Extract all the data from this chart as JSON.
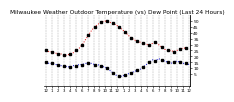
{
  "title": "Milwaukee Weather Outdoor Temperature (vs) Dew Point (Last 24 Hours)",
  "title_fontsize": 4.2,
  "background_color": "#ffffff",
  "grid_color": "#aaaaaa",
  "temp_color": "#dd0000",
  "dew_color": "#0000cc",
  "marker_color": "#000000",
  "ylim": [
    -5,
    55
  ],
  "yticks": [
    5,
    10,
    15,
    20,
    25,
    30,
    35,
    40,
    45,
    50
  ],
  "ytick_labels": [
    "5",
    "10",
    "15",
    "20",
    "25",
    "30",
    "35",
    "40",
    "45",
    "50"
  ],
  "ytick_fontsize": 3.2,
  "xtick_fontsize": 2.8,
  "num_points": 48,
  "temp_values": [
    25,
    24,
    24,
    23,
    22,
    22,
    21,
    21,
    22,
    23,
    25,
    27,
    30,
    34,
    38,
    42,
    45,
    47,
    49,
    50,
    50,
    49,
    48,
    47,
    45,
    43,
    41,
    38,
    36,
    34,
    33,
    32,
    31,
    30,
    30,
    31,
    32,
    30,
    28,
    26,
    25,
    25,
    24,
    25,
    26,
    27,
    27,
    26
  ],
  "dew_values": [
    15,
    14,
    14,
    13,
    13,
    12,
    12,
    11,
    11,
    12,
    12,
    13,
    13,
    14,
    14,
    14,
    13,
    13,
    12,
    11,
    10,
    8,
    6,
    4,
    3,
    3,
    4,
    5,
    6,
    7,
    8,
    9,
    11,
    13,
    15,
    17,
    16,
    18,
    17,
    16,
    15,
    14,
    15,
    16,
    15,
    14,
    14,
    13
  ],
  "num_grids": 25,
  "line_width": 0.7,
  "marker_size": 1.5,
  "xtick_labels": [
    "12",
    "1",
    "2",
    "3",
    "4",
    "5",
    "6",
    "7",
    "8",
    "9",
    "10",
    "11",
    "12",
    "1",
    "2",
    "3",
    "4",
    "5",
    "6",
    "7",
    "8",
    "9",
    "10",
    "11",
    "12"
  ]
}
